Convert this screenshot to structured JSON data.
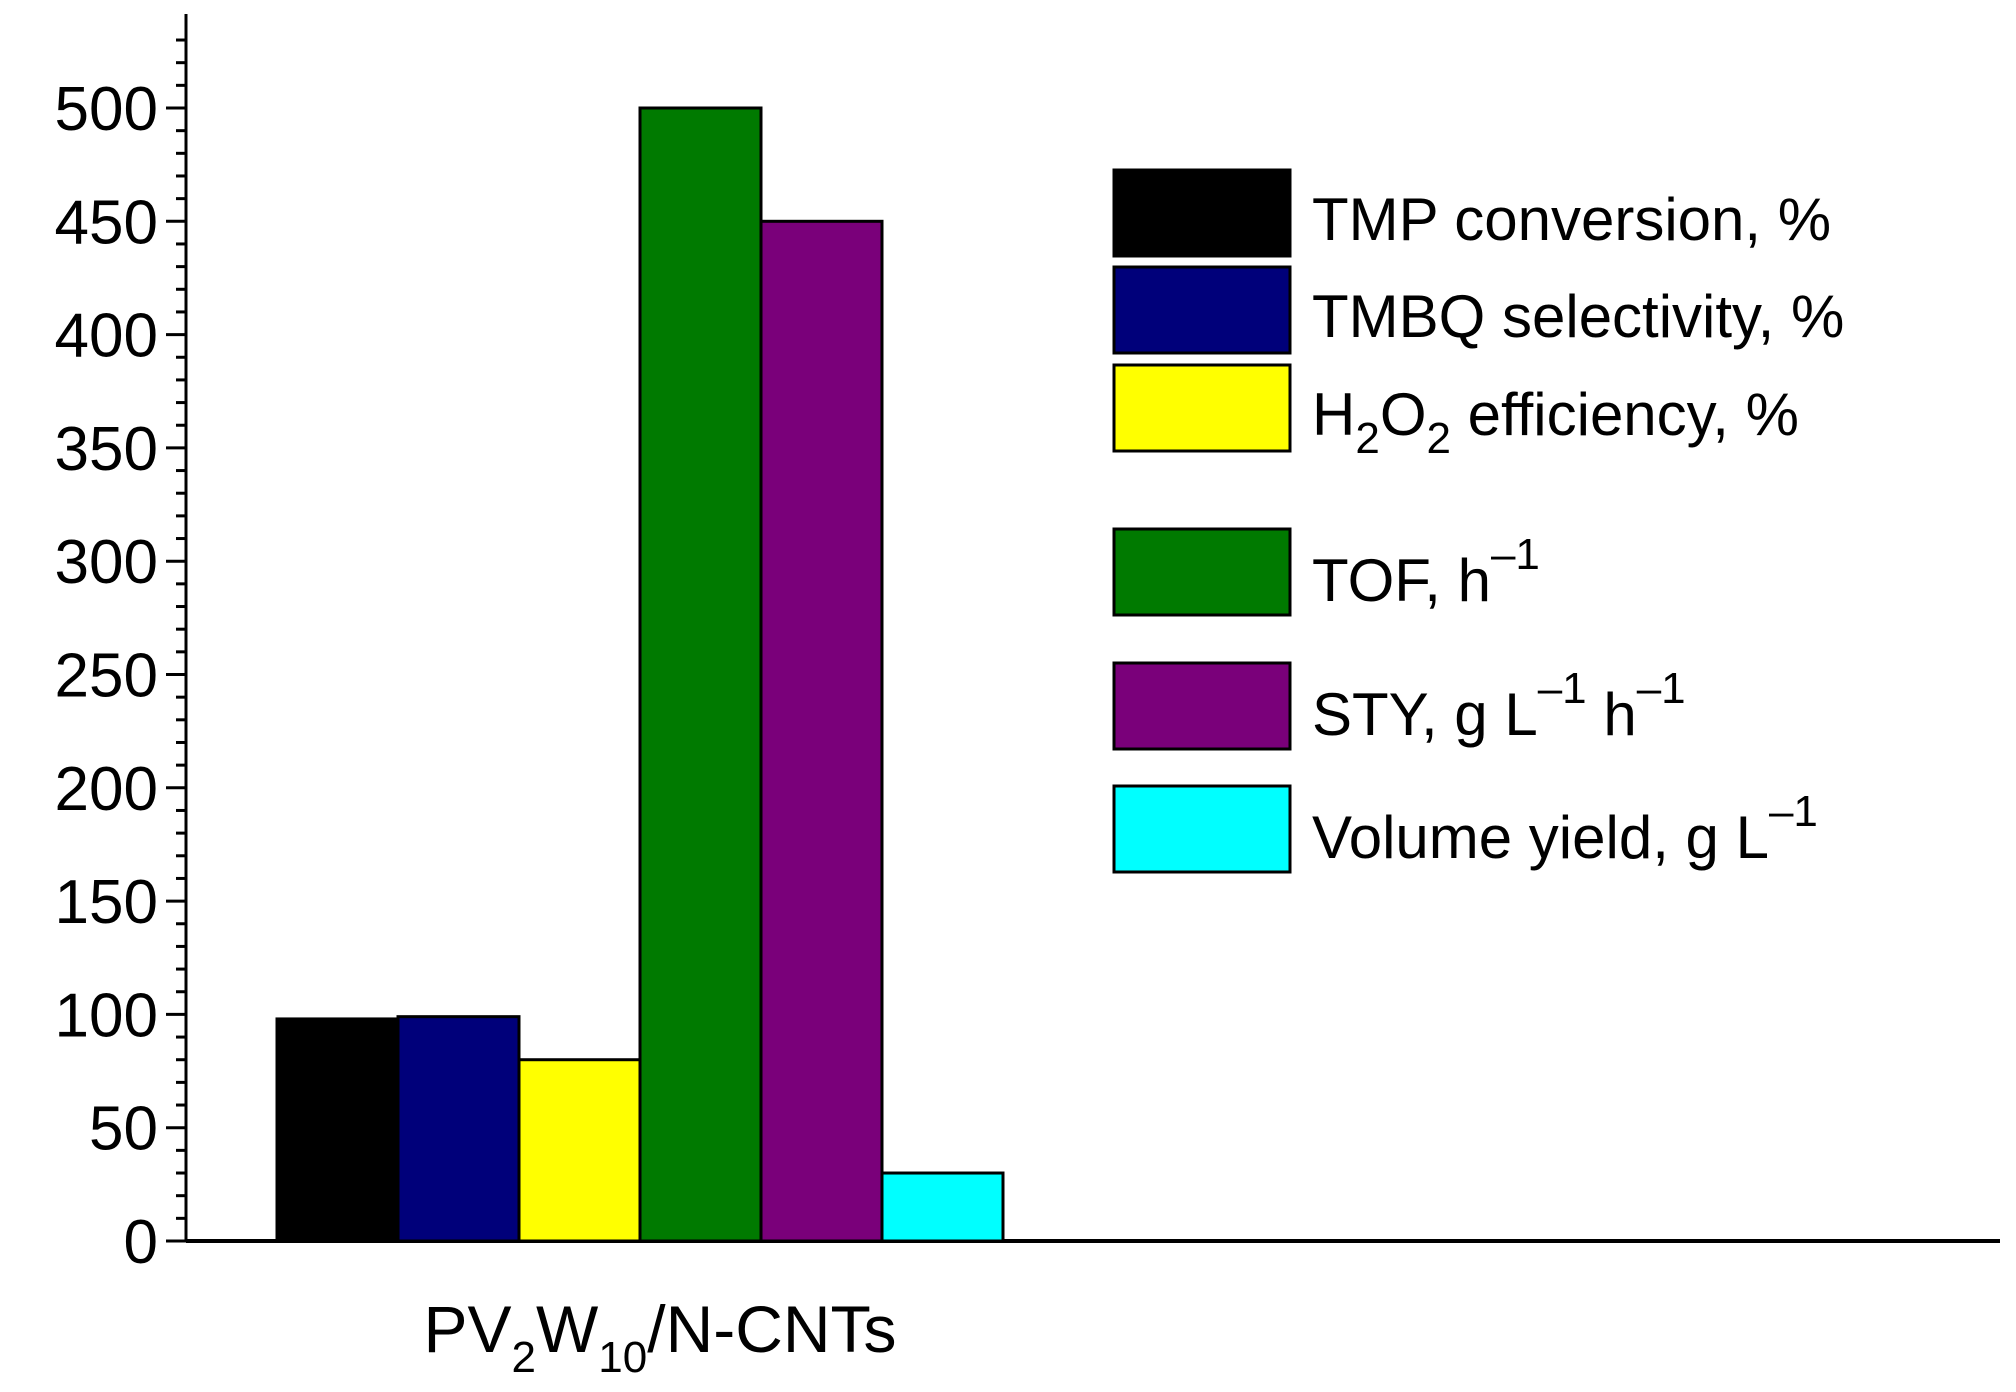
{
  "chart_data": {
    "type": "bar",
    "categories": [
      "PV2W10/N-CNTs"
    ],
    "category_label": {
      "base1": "PV",
      "sub1": "2",
      "base2": "W",
      "sub2": "10",
      "base3": "/N-CNTs"
    },
    "ylim": [
      0,
      535
    ],
    "y_ticks": [
      "0",
      "50",
      "100",
      "150",
      "200",
      "250",
      "300",
      "350",
      "400",
      "450",
      "500"
    ],
    "y_tick_values": [
      0,
      50,
      100,
      150,
      200,
      250,
      300,
      350,
      400,
      450,
      500
    ],
    "series": [
      {
        "name": "TMP conversion, %",
        "values": [
          98
        ],
        "color": "#000000",
        "label": {
          "base": "TMP conversion, %"
        }
      },
      {
        "name": "TMBQ selectivity, %",
        "values": [
          99
        ],
        "color": "#00007a",
        "label": {
          "base": "TMBQ selectivity, %"
        }
      },
      {
        "name": "H2O2 efficiency, %",
        "values": [
          80
        ],
        "color": "#ffff00",
        "label": {
          "base": "H",
          "sub1": "2",
          "mid": "O",
          "sub2": "2",
          "tail": " efficiency, %"
        }
      },
      {
        "name": "TOF, h–1",
        "values": [
          500
        ],
        "color": "#007a00",
        "label": {
          "base": "TOF, h",
          "sup1": "–1"
        }
      },
      {
        "name": "STY, g L–1 h–1",
        "values": [
          450
        ],
        "color": "#7a007a",
        "label": {
          "base": "STY, g L",
          "sup1": "–1",
          "mid": " h",
          "sup2": "–1"
        }
      },
      {
        "name": "Volume yield, g L–1",
        "values": [
          30
        ],
        "color": "#00ffff",
        "label": {
          "base": "Volume yield, g L",
          "sup1": "–1"
        }
      }
    ],
    "legend_position": "top-right",
    "grid": false,
    "title": "",
    "xlabel": "",
    "ylabel": ""
  }
}
